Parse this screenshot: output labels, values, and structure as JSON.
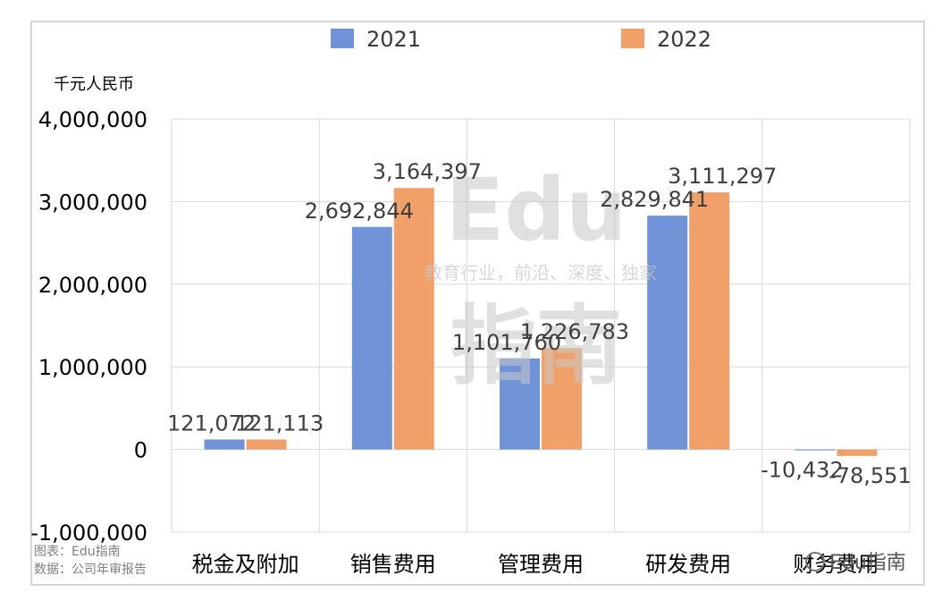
{
  "chart_data": {
    "type": "bar",
    "unit_label": "千元人民币",
    "categories": [
      "税金及附加",
      "销售费用",
      "管理费用",
      "研发费用",
      "财务费用"
    ],
    "series": [
      {
        "name": "2021",
        "color": "#6f93d6",
        "values": [
          121072,
          2692844,
          1101760,
          2829841,
          -10432
        ]
      },
      {
        "name": "2022",
        "color": "#f0a068",
        "values": [
          121113,
          3164397,
          1226783,
          3111297,
          -78551
        ]
      }
    ],
    "data_labels": [
      [
        "121,072",
        "2,692,844",
        "1,101,760",
        "2,829,841",
        "-10,432"
      ],
      [
        "121,113",
        "3,164,397",
        "1,226,783",
        "3,111,297",
        "-78,551"
      ]
    ],
    "ylim": [
      -1000000,
      4000000
    ],
    "yticks": [
      4000000,
      3000000,
      2000000,
      1000000,
      0,
      -1000000
    ],
    "ytick_labels": [
      "4,000,000",
      "3,000,000",
      "2,000,000",
      "1,000,000",
      "0",
      "-1,000,000"
    ],
    "grid": true,
    "legend_position": "top"
  },
  "watermark": {
    "big_line1": "Edu",
    "tagline": "教育行业，前沿、深度、独家",
    "big_line2": "指南",
    "corner_brand": "Edu指南"
  },
  "footer": {
    "source_chart": "图表：Edu指南",
    "source_data": "数据：公司年审报告"
  }
}
